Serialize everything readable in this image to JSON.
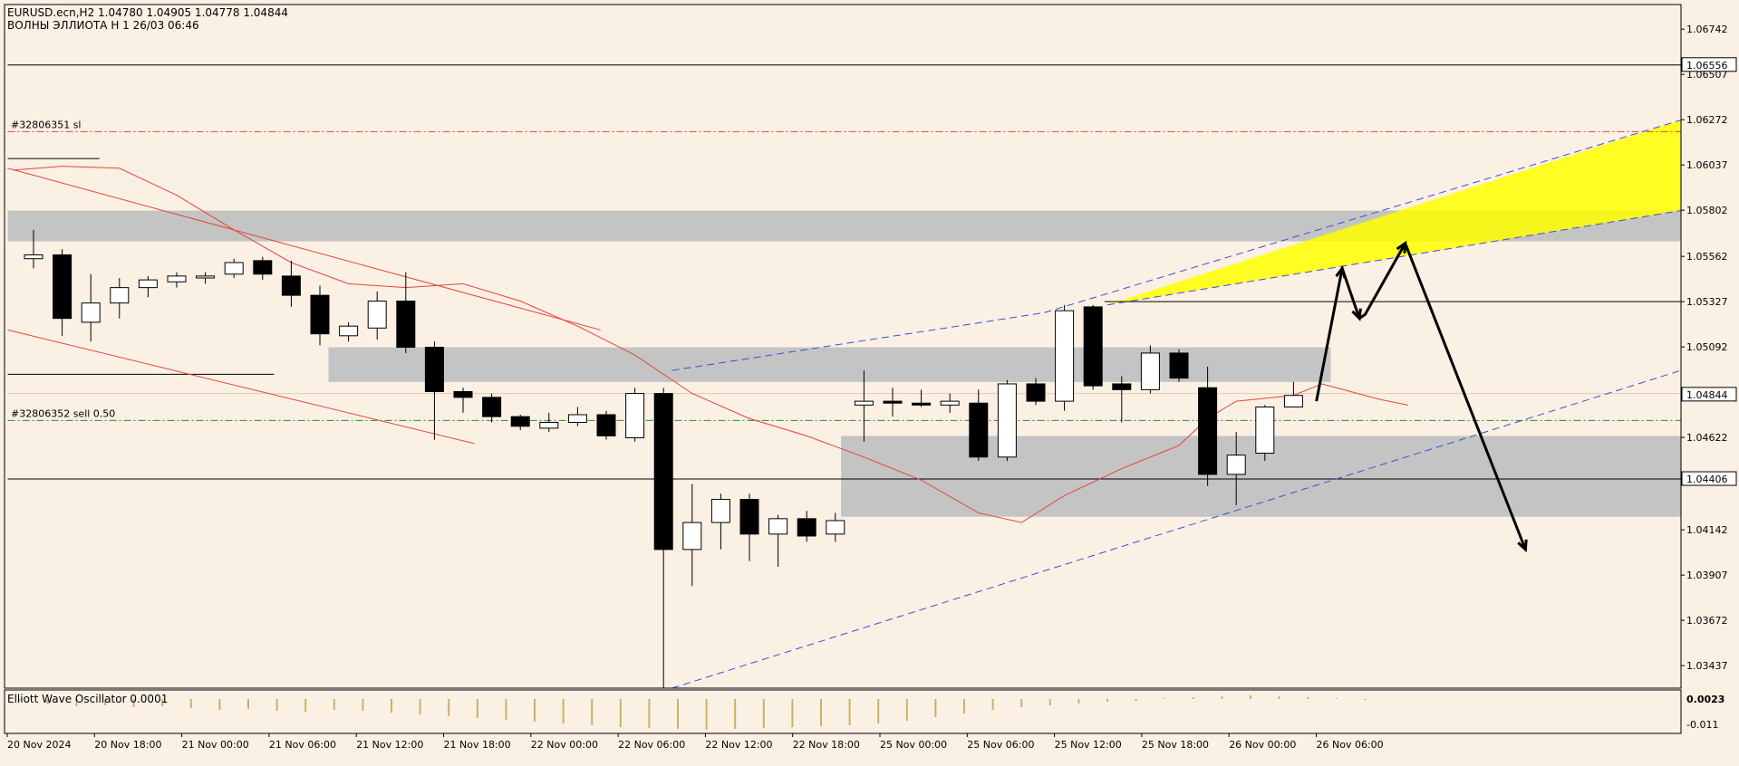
{
  "header": {
    "symbol_line": "EURUSD.ecn,H2  1.04780 1.04905 1.04778 1.04844",
    "indicator_line": "ВОЛНЫ ЭЛЛИОТА H 1 26/03 06:46"
  },
  "oscillator": {
    "label": "Elliott Wave Oscillator 0.0001",
    "axis_ticks": [
      {
        "value": 0.0023,
        "label": "0.0023"
      },
      {
        "value": -0.011,
        "label": "-0.011"
      }
    ],
    "bars": [
      0.0002,
      0.0006,
      0.0008,
      0.0007,
      0.0009,
      0.0008,
      0.001,
      0.0012,
      0.0011,
      0.0013,
      0.0014,
      0.0012,
      0.0013,
      0.0015,
      0.0017,
      0.0019,
      0.0021,
      0.0023,
      0.0025,
      0.0027,
      0.0029,
      0.0031,
      0.0032,
      0.0033,
      0.0034,
      0.0033,
      0.0032,
      0.0031,
      0.003,
      0.0029,
      0.0027,
      0.0024,
      0.002,
      0.0016,
      0.0012,
      0.0009,
      0.0007,
      0.0005,
      0.0003,
      0.0002,
      -0.0001,
      -0.0002,
      -0.0003,
      -0.0004,
      -0.0003,
      -0.0002,
      -0.0001,
      0.0
    ],
    "bar_color": "#c8b26a"
  },
  "chart_data": {
    "type": "candlestick",
    "symbol": "EURUSD.ecn",
    "timeframe": "H2",
    "ylim": [
      1.0332,
      1.0687
    ],
    "y_ticks": [
      1.06742,
      1.06507,
      1.06272,
      1.06037,
      1.05802,
      1.05562,
      1.05327,
      1.05092,
      1.04622,
      1.04142,
      1.03907,
      1.03672,
      1.03437
    ],
    "x_ticks": [
      "20 Nov 2024",
      "20 Nov 18:00",
      "21 Nov 00:00",
      "21 Nov 06:00",
      "21 Nov 12:00",
      "21 Nov 18:00",
      "22 Nov 00:00",
      "22 Nov 06:00",
      "22 Nov 12:00",
      "22 Nov 18:00",
      "25 Nov 00:00",
      "25 Nov 06:00",
      "25 Nov 12:00",
      "25 Nov 18:00",
      "26 Nov 00:00",
      "26 Nov 06:00"
    ],
    "price_labels": [
      {
        "value": 1.06556,
        "label": "1.06556",
        "style": "box"
      },
      {
        "value": 1.04844,
        "label": "1.04844",
        "style": "box"
      },
      {
        "value": 1.04406,
        "label": "1.04406",
        "style": "box"
      }
    ],
    "candles": [
      {
        "o": 1.0555,
        "h": 1.057,
        "l": 1.055,
        "c": 1.0557
      },
      {
        "o": 1.0557,
        "h": 1.056,
        "l": 1.0515,
        "c": 1.0524
      },
      {
        "o": 1.0522,
        "h": 1.0547,
        "l": 1.0512,
        "c": 1.0532
      },
      {
        "o": 1.0532,
        "h": 1.0545,
        "l": 1.0524,
        "c": 1.054
      },
      {
        "o": 1.054,
        "h": 1.0546,
        "l": 1.0535,
        "c": 1.0544
      },
      {
        "o": 1.0543,
        "h": 1.0548,
        "l": 1.054,
        "c": 1.0546
      },
      {
        "o": 1.0545,
        "h": 1.0548,
        "l": 1.0542,
        "c": 1.0546
      },
      {
        "o": 1.0547,
        "h": 1.0555,
        "l": 1.0545,
        "c": 1.0553
      },
      {
        "o": 1.0554,
        "h": 1.0556,
        "l": 1.0544,
        "c": 1.0547
      },
      {
        "o": 1.0546,
        "h": 1.0554,
        "l": 1.053,
        "c": 1.0536
      },
      {
        "o": 1.0536,
        "h": 1.0541,
        "l": 1.051,
        "c": 1.0516
      },
      {
        "o": 1.0515,
        "h": 1.0522,
        "l": 1.0512,
        "c": 1.052
      },
      {
        "o": 1.0519,
        "h": 1.0538,
        "l": 1.0513,
        "c": 1.0533
      },
      {
        "o": 1.0533,
        "h": 1.0548,
        "l": 1.0506,
        "c": 1.0509
      },
      {
        "o": 1.0509,
        "h": 1.0512,
        "l": 1.0461,
        "c": 1.0486
      },
      {
        "o": 1.0486,
        "h": 1.0488,
        "l": 1.0475,
        "c": 1.0483
      },
      {
        "o": 1.0483,
        "h": 1.0485,
        "l": 1.047,
        "c": 1.0473
      },
      {
        "o": 1.0473,
        "h": 1.0474,
        "l": 1.0466,
        "c": 1.0468
      },
      {
        "o": 1.0467,
        "h": 1.0475,
        "l": 1.0465,
        "c": 1.047
      },
      {
        "o": 1.047,
        "h": 1.0478,
        "l": 1.0468,
        "c": 1.0474
      },
      {
        "o": 1.0474,
        "h": 1.0476,
        "l": 1.0461,
        "c": 1.0463
      },
      {
        "o": 1.0462,
        "h": 1.0488,
        "l": 1.046,
        "c": 1.0485
      },
      {
        "o": 1.0485,
        "h": 1.0488,
        "l": 1.0332,
        "c": 1.0404
      },
      {
        "o": 1.0404,
        "h": 1.0438,
        "l": 1.0385,
        "c": 1.0418
      },
      {
        "o": 1.0418,
        "h": 1.0433,
        "l": 1.0404,
        "c": 1.043
      },
      {
        "o": 1.043,
        "h": 1.0433,
        "l": 1.0398,
        "c": 1.0412
      },
      {
        "o": 1.0412,
        "h": 1.0422,
        "l": 1.0395,
        "c": 1.042
      },
      {
        "o": 1.042,
        "h": 1.0424,
        "l": 1.0408,
        "c": 1.0411
      },
      {
        "o": 1.0412,
        "h": 1.0423,
        "l": 1.0408,
        "c": 1.0419
      },
      {
        "o": 1.0479,
        "h": 1.0497,
        "l": 1.046,
        "c": 1.0481
      },
      {
        "o": 1.0481,
        "h": 1.0488,
        "l": 1.0473,
        "c": 1.048
      },
      {
        "o": 1.048,
        "h": 1.0487,
        "l": 1.0478,
        "c": 1.0479
      },
      {
        "o": 1.0479,
        "h": 1.0485,
        "l": 1.0475,
        "c": 1.0481
      },
      {
        "o": 1.048,
        "h": 1.0487,
        "l": 1.045,
        "c": 1.0452
      },
      {
        "o": 1.0452,
        "h": 1.0492,
        "l": 1.045,
        "c": 1.049
      },
      {
        "o": 1.049,
        "h": 1.0493,
        "l": 1.0479,
        "c": 1.0481
      },
      {
        "o": 1.0481,
        "h": 1.0531,
        "l": 1.0476,
        "c": 1.0528
      },
      {
        "o": 1.053,
        "h": 1.0531,
        "l": 1.0487,
        "c": 1.0489
      },
      {
        "o": 1.049,
        "h": 1.0494,
        "l": 1.047,
        "c": 1.0487
      },
      {
        "o": 1.0487,
        "h": 1.051,
        "l": 1.0485,
        "c": 1.0506
      },
      {
        "o": 1.0506,
        "h": 1.0508,
        "l": 1.0491,
        "c": 1.0493
      },
      {
        "o": 1.0488,
        "h": 1.0499,
        "l": 1.0437,
        "c": 1.0443
      },
      {
        "o": 1.0443,
        "h": 1.0465,
        "l": 1.0427,
        "c": 1.0453
      },
      {
        "o": 1.0454,
        "h": 1.0479,
        "l": 1.045,
        "c": 1.0478
      },
      {
        "o": 1.0478,
        "h": 1.0491,
        "l": 1.0478,
        "c": 1.0484
      }
    ],
    "moving_average": [
      {
        "i": -0.7,
        "v": 1.0601
      },
      {
        "i": 1,
        "v": 1.0603
      },
      {
        "i": 3,
        "v": 1.0602
      },
      {
        "i": 5,
        "v": 1.0588
      },
      {
        "i": 7,
        "v": 1.057
      },
      {
        "i": 9,
        "v": 1.0553
      },
      {
        "i": 11,
        "v": 1.0542
      },
      {
        "i": 13,
        "v": 1.054
      },
      {
        "i": 15,
        "v": 1.0542
      },
      {
        "i": 17,
        "v": 1.0533
      },
      {
        "i": 19,
        "v": 1.052
      },
      {
        "i": 21,
        "v": 1.0505
      },
      {
        "i": 23,
        "v": 1.0485
      },
      {
        "i": 25,
        "v": 1.0472
      },
      {
        "i": 27,
        "v": 1.0463
      },
      {
        "i": 29,
        "v": 1.0452
      },
      {
        "i": 31,
        "v": 1.044
      },
      {
        "i": 33,
        "v": 1.0423
      },
      {
        "i": 34.5,
        "v": 1.0418
      },
      {
        "i": 36,
        "v": 1.0432
      },
      {
        "i": 38,
        "v": 1.0446
      },
      {
        "i": 40,
        "v": 1.0458
      },
      {
        "i": 41,
        "v": 1.0472
      },
      {
        "i": 42,
        "v": 1.0481
      },
      {
        "i": 44,
        "v": 1.0484
      },
      {
        "i": 45,
        "v": 1.049
      },
      {
        "i": 46,
        "v": 1.0486
      },
      {
        "i": 47,
        "v": 1.0482
      },
      {
        "i": 48,
        "v": 1.0479
      }
    ],
    "zones": [
      {
        "i1": -0.9,
        "i2": 58.5,
        "top": 1.058,
        "bottom": 1.0564
      },
      {
        "i1": 10.3,
        "i2": 45.3,
        "top": 1.0509,
        "bottom": 1.0491
      },
      {
        "i1": 28.2,
        "i2": 58.5,
        "top": 1.0463,
        "bottom": 1.0421
      }
    ],
    "yellow_zone": [
      {
        "i": 37.5,
        "v": 1.0531
      },
      {
        "i": 58.5,
        "v": 1.0627
      },
      {
        "i": 58.5,
        "v": 1.058
      }
    ],
    "horizontal_lines": [
      {
        "value": 1.06556,
        "style": "solid",
        "color": "#000000",
        "i1": -0.9,
        "i2": 58.5
      },
      {
        "value": 1.05327,
        "style": "solid",
        "color": "#000000",
        "i1": 37.4,
        "i2": 58.5
      },
      {
        "value": 1.04406,
        "style": "solid",
        "color": "#000000",
        "i1": -0.9,
        "i2": 58.5
      },
      {
        "value": 1.0621,
        "style": "dashdot",
        "color": "#e2463c",
        "i1": -0.9,
        "i2": 58.5
      },
      {
        "value": 1.0471,
        "style": "dashdot",
        "color": "#2e8b2e",
        "i1": -0.9,
        "i2": 58.5
      },
      {
        "value": 1.0485,
        "style": "solid",
        "color": "#e8c9b0",
        "i1": -0.9,
        "i2": 58.5
      },
      {
        "value": 1.0607,
        "style": "solid",
        "color": "#000000",
        "i1": -0.9,
        "i2": 2.3
      },
      {
        "value": 1.0495,
        "style": "solid",
        "color": "#000000",
        "i1": -0.9,
        "i2": 8.4
      }
    ],
    "order_labels": [
      {
        "text": "#32806351 sl",
        "value": 1.0621
      },
      {
        "text": "#32806352 sell 0.50",
        "value": 1.0471
      }
    ],
    "channel_lines": [
      {
        "color": "#e2463c",
        "style": "solid",
        "p1": {
          "i": -0.9,
          "v": 1.0602
        },
        "p2": {
          "i": 19.8,
          "v": 1.0518
        }
      },
      {
        "color": "#e2463c",
        "style": "solid",
        "p1": {
          "i": -0.9,
          "v": 1.0518
        },
        "p2": {
          "i": 15.4,
          "v": 1.0459
        }
      },
      {
        "color": "#3b4fd6",
        "style": "dashed",
        "p1": {
          "i": 22.3,
          "v": 1.0332
        },
        "p2": {
          "i": 58.5,
          "v": 1.0497
        }
      },
      {
        "color": "#3b4fd6",
        "style": "dashed",
        "p1": {
          "i": 22.3,
          "v": 1.0497
        },
        "p2": {
          "i": 35.3,
          "v": 1.0527
        }
      },
      {
        "color": "#3b4fd6",
        "style": "dashed",
        "p1": {
          "i": 35.3,
          "v": 1.0527
        },
        "p2": {
          "i": 58.5,
          "v": 1.0627
        }
      },
      {
        "color": "#3b4fd6",
        "style": "dashed",
        "p1": {
          "i": 37.5,
          "v": 1.0531
        },
        "p2": {
          "i": 58.5,
          "v": 1.058
        }
      }
    ],
    "projection_arrow": [
      {
        "i": 44.8,
        "v": 1.0481
      },
      {
        "i": 45.7,
        "v": 1.055
      },
      {
        "i": 46.3,
        "v": 1.0524
      },
      {
        "i": 46.3,
        "v": 1.0524
      },
      {
        "i": 46.5,
        "v": 1.0526
      },
      {
        "i": 47.9,
        "v": 1.0563
      },
      {
        "i": 52.1,
        "v": 1.0404
      }
    ]
  }
}
